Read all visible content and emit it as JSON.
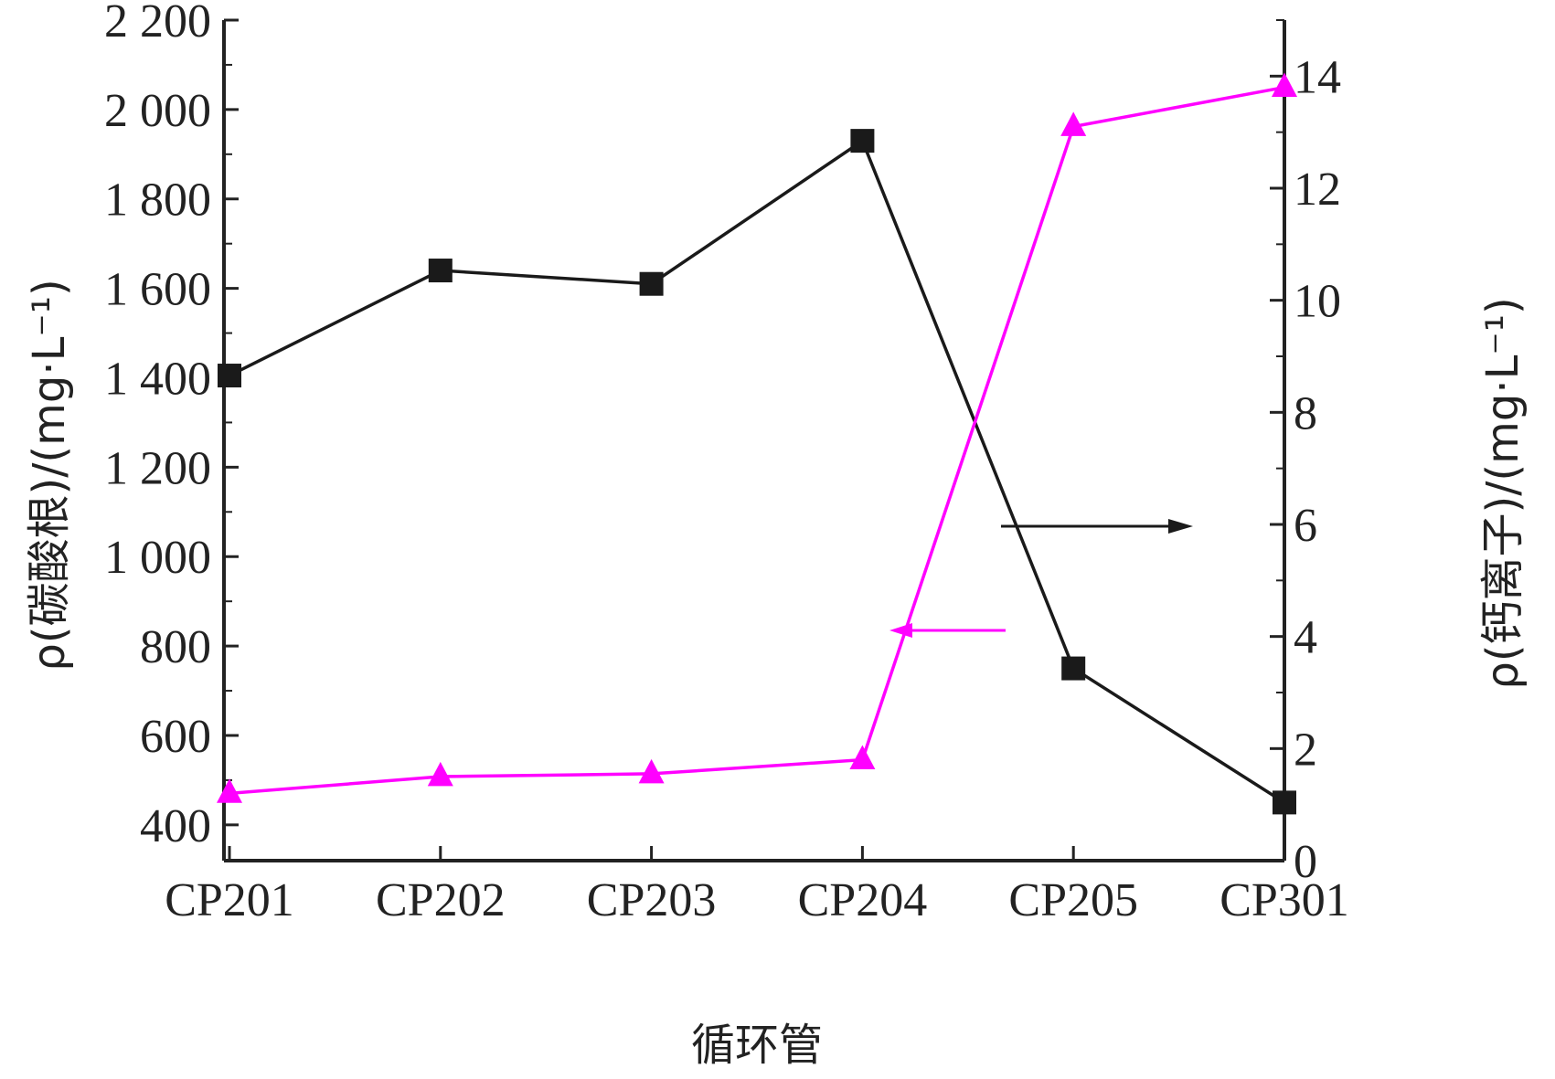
{
  "chart_data": {
    "type": "line",
    "title": "",
    "categories": [
      "CP201",
      "CP202",
      "CP203",
      "CP204",
      "CP205",
      "CP301"
    ],
    "xlabel": "循环管",
    "ylabel_left": "ρ(碳酸根)/(mg·L⁻¹)",
    "ylabel_right": "ρ(钙离子)/(mg·L⁻¹)",
    "y_left": {
      "lim": [
        320,
        2200
      ],
      "ticks": [
        400,
        600,
        800,
        1000,
        1200,
        1400,
        1600,
        1800,
        2000,
        2200
      ],
      "tick_labels": [
        "400",
        "600",
        "800",
        "1 000",
        "1 200",
        "1 400",
        "1 600",
        "1 800",
        "2 000",
        "2 200"
      ]
    },
    "y_right": {
      "lim": [
        0,
        15
      ],
      "ticks": [
        0,
        2,
        4,
        6,
        8,
        10,
        12,
        14
      ],
      "tick_labels": [
        "0",
        "2",
        "4",
        "6",
        "8",
        "10",
        "12",
        "14"
      ]
    },
    "series": [
      {
        "axis": "left",
        "color": "#1a1a1a",
        "marker": "square",
        "values": [
          1405,
          1640,
          1610,
          1930,
          750,
          450
        ]
      },
      {
        "axis": "right",
        "color": "#ff00ff",
        "marker": "triangle",
        "values": [
          1.2,
          1.5,
          1.55,
          1.8,
          13.1,
          13.8
        ]
      }
    ],
    "annotations": [
      {
        "type": "arrow",
        "points_to": "right axis",
        "color": "#1a1a1a"
      },
      {
        "type": "arrow",
        "points_to": "left axis",
        "color": "#ff00ff"
      }
    ],
    "grid": false,
    "legend": "none"
  }
}
